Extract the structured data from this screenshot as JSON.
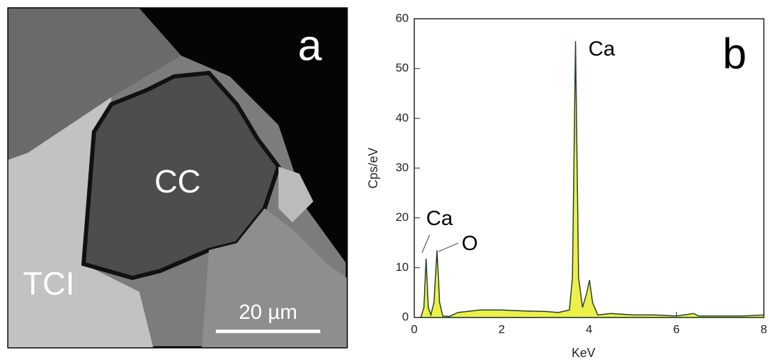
{
  "panel_a": {
    "label": "a",
    "regions": [
      "CC",
      "TCI"
    ],
    "scale_bar": "20 µm"
  },
  "chart_data": {
    "type": "area",
    "panel_label": "b",
    "x_label": "KeV",
    "y_label": "Cps/eV",
    "annotations": [
      "Ca",
      "Ca",
      "O"
    ],
    "color": "#eef04a",
    "line_color": "#24402a",
    "x": [
      0.15,
      0.22,
      0.27,
      0.32,
      0.38,
      0.45,
      0.52,
      0.58,
      0.65,
      0.8,
      1.0,
      1.5,
      2.0,
      2.5,
      3.0,
      3.3,
      3.55,
      3.62,
      3.69,
      3.76,
      3.85,
      3.95,
      4.01,
      4.08,
      4.2,
      4.5,
      5.0,
      5.5,
      6.0,
      6.4,
      6.5,
      7.0,
      7.5,
      8.0
    ],
    "values": [
      0,
      2,
      11.8,
      2,
      0.5,
      3,
      13.5,
      3,
      0.3,
      0.2,
      1,
      1.5,
      1.5,
      1.3,
      1.2,
      1.0,
      1.5,
      8,
      55.5,
      8,
      2,
      5,
      7.5,
      3,
      0.5,
      0.8,
      0.5,
      0.5,
      0.3,
      0.8,
      0.3,
      0.3,
      0.3,
      0.5
    ],
    "xlim": [
      0,
      8
    ],
    "ylim": [
      0,
      60
    ],
    "xticks": [
      0,
      2,
      4,
      6,
      8
    ],
    "yticks": [
      0,
      10,
      20,
      30,
      40,
      50,
      60
    ]
  }
}
